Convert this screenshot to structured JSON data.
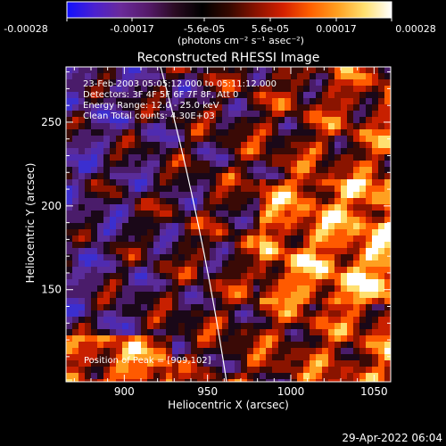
{
  "colorbar": {
    "tick_labels": [
      "-0.00028",
      "-0.00017",
      "-5.6e-05",
      "5.6e-05",
      "0.00017",
      "0.00028"
    ],
    "unit_label": "(photons cm⁻² s⁻¹ asec⁻²)",
    "stops": [
      "#1010ff",
      "#4a20d0",
      "#6a2a9a",
      "#551a6a",
      "#2a0b22",
      "#000000",
      "#350800",
      "#8a1200",
      "#d42000",
      "#ff6000",
      "#ffa020",
      "#ffe070",
      "#ffffff"
    ]
  },
  "image": {
    "title": "Reconstructed RHESSI Image",
    "info_lines": [
      "23-Feb-2003 05:05:12.000 to 05:11:12.000",
      "Detectors: 3F 4F 5F 6F 7F 8F, Att 0",
      "Energy Range: 12.0 - 25.0 keV",
      "Clean    Total counts: 4.30E+03"
    ],
    "position_text": "Position of Peak = [909,102]"
  },
  "axes": {
    "x_label": "Heliocentric X (arcsec)",
    "y_label": "Heliocentric Y (arcsec)",
    "x_ticks": [
      "900",
      "950",
      "1000",
      "1050"
    ],
    "y_ticks": [
      "150",
      "200",
      "250"
    ],
    "x_tick_values": [
      900,
      950,
      1000,
      1050
    ],
    "y_tick_values": [
      150,
      200,
      250
    ],
    "x_range": [
      865,
      1060
    ],
    "y_range": [
      95,
      283
    ]
  },
  "footer": {
    "timestamp": "29-Apr-2022 06:04"
  }
}
